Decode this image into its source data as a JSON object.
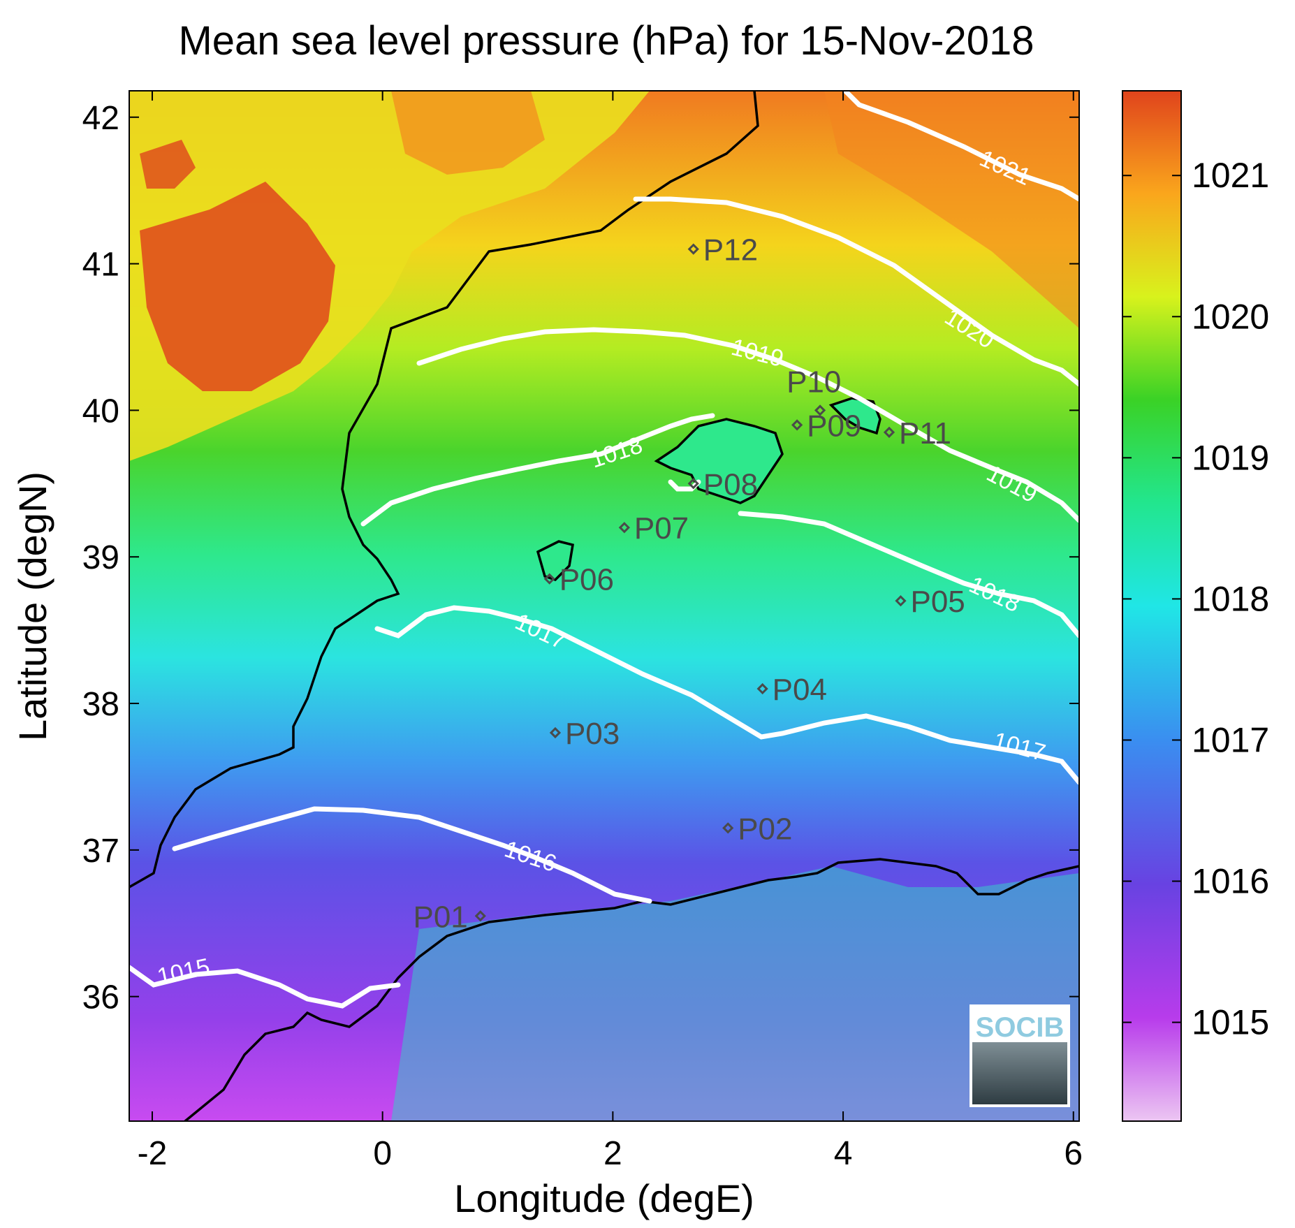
{
  "title": "Mean sea level pressure (hPa) for 15-Nov-2018",
  "x_axis": {
    "label": "Longitude (degE)",
    "range": [
      -2.2,
      6.05
    ],
    "ticks": [
      -2,
      0,
      2,
      4,
      6
    ],
    "tick_labels": [
      "-2",
      "0",
      "2",
      "4",
      "6"
    ]
  },
  "y_axis": {
    "label": "Latitude (degN)",
    "range": [
      35.15,
      42.18
    ],
    "ticks": [
      36,
      37,
      38,
      39,
      40,
      41,
      42
    ],
    "tick_labels": [
      "36",
      "37",
      "38",
      "39",
      "40",
      "41",
      "42"
    ]
  },
  "colorbar": {
    "range": [
      1014.3,
      1021.6
    ],
    "ticks": [
      1015,
      1016,
      1017,
      1018,
      1019,
      1020,
      1021
    ],
    "tick_labels": [
      "1015",
      "1016",
      "1017",
      "1018",
      "1019",
      "1020",
      "1021"
    ],
    "colors": [
      "#e8b6ee",
      "#b637ec",
      "#6a3fe2",
      "#3b8cf0",
      "#22e6e6",
      "#26e694",
      "#3fd422",
      "#d6f01a",
      "#fbb21a",
      "#e24a1c"
    ]
  },
  "contours": [
    {
      "level": "1015",
      "label": "1015"
    },
    {
      "level": "1016",
      "label": "1016"
    },
    {
      "level": "1017",
      "label": "1017"
    },
    {
      "level": "1018",
      "label": "1018"
    },
    {
      "level": "1019",
      "label": "1019"
    },
    {
      "level": "1020",
      "label": "1020"
    },
    {
      "level": "1021",
      "label": "1021"
    }
  ],
  "stations": [
    {
      "id": "P01",
      "label": "P01",
      "lon": 0.85,
      "lat": 36.55
    },
    {
      "id": "P02",
      "label": "P02",
      "lon": 3.0,
      "lat": 37.15
    },
    {
      "id": "P03",
      "label": "P03",
      "lon": 1.5,
      "lat": 37.8
    },
    {
      "id": "P04",
      "label": "P04",
      "lon": 3.3,
      "lat": 38.1
    },
    {
      "id": "P05",
      "label": "P05",
      "lon": 4.5,
      "lat": 38.7
    },
    {
      "id": "P06",
      "label": "P06",
      "lon": 1.45,
      "lat": 38.85
    },
    {
      "id": "P07",
      "label": "P07",
      "lon": 2.1,
      "lat": 39.2
    },
    {
      "id": "P08",
      "label": "P08",
      "lon": 2.7,
      "lat": 39.5
    },
    {
      "id": "P09",
      "label": "P09",
      "lon": 3.6,
      "lat": 39.9
    },
    {
      "id": "P10",
      "label": "P10",
      "lon": 3.8,
      "lat": 40.0
    },
    {
      "id": "P11",
      "label": "P11",
      "lon": 4.4,
      "lat": 39.85
    },
    {
      "id": "P12",
      "label": "P12",
      "lon": 2.7,
      "lat": 41.1
    }
  ],
  "logo": {
    "text": "SOCIB"
  }
}
